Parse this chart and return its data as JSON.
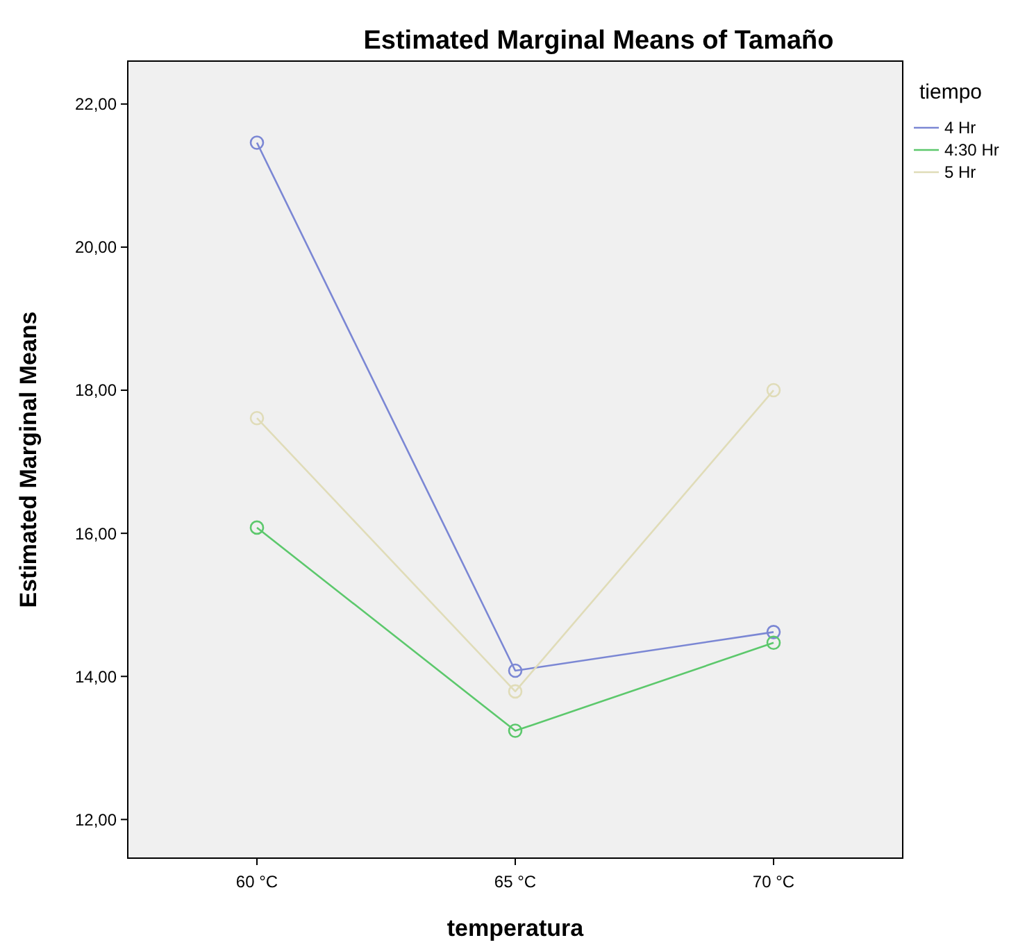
{
  "chart_data": {
    "type": "line",
    "title": "Estimated Marginal Means of Tamaño",
    "xlabel": "temperatura",
    "ylabel": "Estimated Marginal Means",
    "legend_title": "tiempo",
    "categories": [
      "60 °C",
      "65 °C",
      "70 °C"
    ],
    "series": [
      {
        "name": "4 Hr",
        "color": "#7b87d4",
        "values": [
          21.46,
          14.08,
          14.62
        ]
      },
      {
        "name": "4:30 Hr",
        "color": "#5cc86c",
        "values": [
          16.08,
          13.24,
          14.47
        ]
      },
      {
        "name": "5 Hr",
        "color": "#e0dcb8",
        "values": [
          17.61,
          13.79,
          18.0
        ]
      }
    ],
    "ylim": [
      11.46,
      22.6
    ],
    "yticks": [
      {
        "value": 12,
        "label": "12,00"
      },
      {
        "value": 14,
        "label": "14,00"
      },
      {
        "value": 16,
        "label": "16,00"
      },
      {
        "value": 18,
        "label": "18,00"
      },
      {
        "value": 20,
        "label": "20,00"
      },
      {
        "value": 22,
        "label": "22,00"
      }
    ],
    "grid": false,
    "legend": "top right",
    "marker": "circle",
    "line_style": "solid"
  }
}
